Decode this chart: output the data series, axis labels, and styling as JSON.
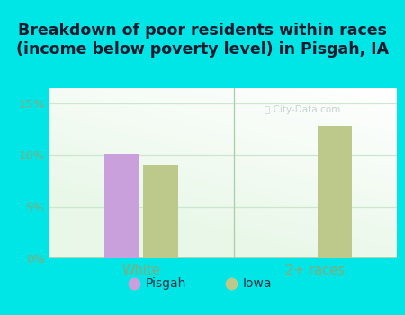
{
  "title": "Breakdown of poor residents within races\n(income below poverty level) in Pisgah, IA",
  "categories": [
    "White",
    "2+ races"
  ],
  "pisgah_values": [
    10.1,
    0
  ],
  "iowa_values": [
    9.1,
    12.8
  ],
  "pisgah_color": "#c9a0dc",
  "iowa_color": "#bcc98a",
  "background_color": "#00e5e5",
  "plot_bg_color": "#e8f5e0",
  "ylabel_ticks": [
    0,
    5,
    10,
    15
  ],
  "ylabel_labels": [
    "0%",
    "5%",
    "10%",
    "15%"
  ],
  "ylim": [
    0,
    16.5
  ],
  "bar_width": 0.32,
  "title_fontsize": 12.5,
  "tick_color": "#88aa77",
  "axis_color": "#aaccaa",
  "grid_color": "#cce8cc"
}
